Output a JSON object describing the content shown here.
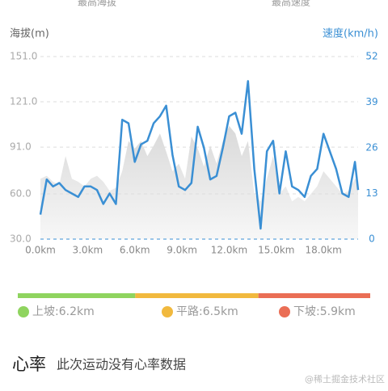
{
  "header": {
    "left": "最高海拔",
    "right": "最高速度"
  },
  "chart_data": {
    "type": "line",
    "ylabel": "海拔(m)",
    "y2label": "速度(km/h)",
    "x": [
      0,
      0.4,
      0.8,
      1.2,
      1.6,
      2.0,
      2.4,
      2.8,
      3.2,
      3.6,
      4.0,
      4.4,
      4.8,
      5.2,
      5.6,
      6.0,
      6.4,
      6.8,
      7.2,
      7.6,
      8.0,
      8.4,
      8.8,
      9.2,
      9.6,
      10.0,
      10.4,
      10.8,
      11.2,
      11.6,
      12.0,
      12.4,
      12.8,
      13.2,
      13.6,
      14.0,
      14.4,
      14.8,
      15.2,
      15.6,
      16.0,
      16.4,
      16.8,
      17.2,
      17.6,
      18.0,
      18.4,
      18.8,
      19.2,
      19.6,
      20.0,
      20.2
    ],
    "xlim": [
      0,
      20.2
    ],
    "xticks": [
      {
        "value": 0,
        "label": "0.0km"
      },
      {
        "value": 3,
        "label": "3.0km"
      },
      {
        "value": 6,
        "label": "6.0km"
      },
      {
        "value": 9,
        "label": "9.0km"
      },
      {
        "value": 12,
        "label": "12.0km"
      },
      {
        "value": 15,
        "label": "15.0km"
      },
      {
        "value": 18,
        "label": "18.0km"
      }
    ],
    "ylim": [
      30,
      151
    ],
    "yticks": [
      {
        "value": 151,
        "label": "151.0"
      },
      {
        "value": 121,
        "label": "121.0"
      },
      {
        "value": 91,
        "label": "91.0"
      },
      {
        "value": 60,
        "label": "60.0"
      },
      {
        "value": 30,
        "label": "30.0"
      }
    ],
    "y2lim": [
      0,
      52
    ],
    "y2ticks": [
      52,
      39,
      26,
      13,
      0
    ],
    "series": [
      {
        "name": "海拔",
        "kind": "area",
        "color": "#d9d9d9",
        "values": [
          70,
          72,
          68,
          66,
          85,
          70,
          68,
          65,
          70,
          72,
          68,
          62,
          64,
          75,
          95,
          90,
          95,
          85,
          92,
          100,
          88,
          75,
          80,
          70,
          98,
          90,
          78,
          92,
          80,
          95,
          105,
          100,
          85,
          95,
          60,
          55,
          70,
          85,
          60,
          65,
          55,
          58,
          55,
          60,
          65,
          75,
          70,
          65,
          60,
          62,
          70,
          68
        ]
      },
      {
        "name": "速度",
        "kind": "line",
        "axis": "y2",
        "color": "#3a8fd4",
        "values": [
          7,
          17,
          15,
          16,
          14,
          13,
          12,
          15,
          15,
          14,
          10,
          13,
          10,
          34,
          33,
          22,
          27,
          28,
          33,
          35,
          38,
          24,
          15,
          14,
          16,
          32,
          26,
          17,
          18,
          26,
          35,
          36,
          30,
          45,
          20,
          3,
          25,
          28,
          13,
          25,
          15,
          14,
          12,
          18,
          20,
          30,
          25,
          20,
          13,
          12,
          22,
          14
        ]
      }
    ]
  },
  "terrain": [
    {
      "label": "上坡:6.2km",
      "value": 6.2,
      "color": "#8fd45f"
    },
    {
      "label": "平路:6.5km",
      "value": 6.5,
      "color": "#f1b93e"
    },
    {
      "label": "下坡:5.9km",
      "value": 5.9,
      "color": "#ea6e55"
    }
  ],
  "footer": {
    "title": "心率",
    "note": "此次运动没有心率数据",
    "watermark": "@稀土掘金技术社区"
  }
}
